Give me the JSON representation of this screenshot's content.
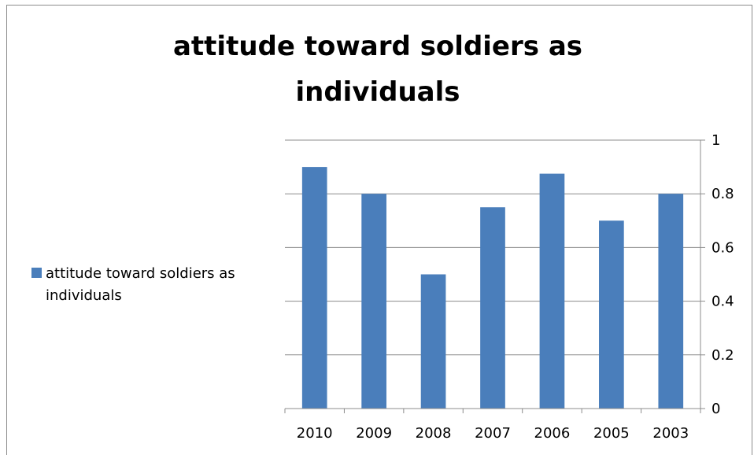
{
  "chart_data": {
    "type": "bar",
    "title": "attitude toward soldiers as individuals",
    "categories": [
      "2010",
      "2009",
      "2008",
      "2007",
      "2006",
      "2005",
      "2003"
    ],
    "series": [
      {
        "name": "attitude toward soldiers as individuals",
        "values": [
          0.9,
          0.8,
          0.5,
          0.75,
          0.875,
          0.7,
          0.8
        ],
        "color": "#4A7EBB"
      }
    ],
    "ylim": [
      0,
      1
    ],
    "yticks": [
      "0",
      "0.2",
      "0.4",
      "0.6",
      "0.8",
      "1"
    ],
    "y_axis_side": "right",
    "grid": true,
    "legend_position": "left"
  }
}
